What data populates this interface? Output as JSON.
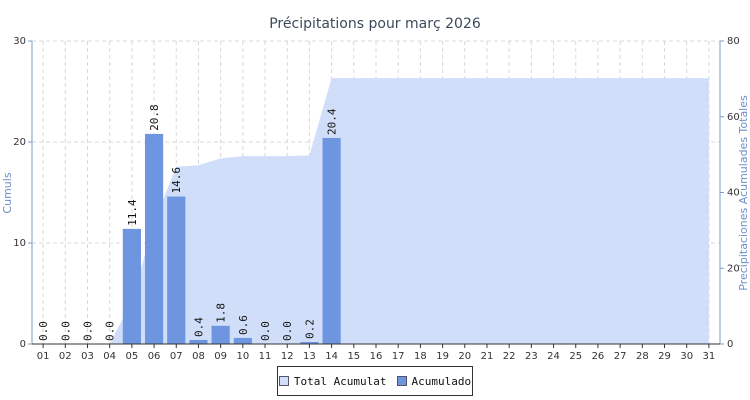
{
  "chart_data": {
    "type": "bar",
    "title": "Précipitations pour marҫ 2026",
    "ylabel": "Cumuls",
    "y2label": "Precipitaciones Acumulades Totales",
    "ylim": [
      0,
      30
    ],
    "y2lim": [
      0,
      80
    ],
    "yticks": [
      "0",
      "10",
      "20",
      "30"
    ],
    "y2ticks": [
      "0",
      "20",
      "40",
      "60",
      "80"
    ],
    "categories": [
      "01",
      "02",
      "03",
      "04",
      "05",
      "06",
      "07",
      "08",
      "09",
      "10",
      "11",
      "12",
      "13",
      "14",
      "15",
      "16",
      "17",
      "18",
      "19",
      "20",
      "21",
      "22",
      "23",
      "24",
      "25",
      "26",
      "27",
      "28",
      "29",
      "30",
      "31"
    ],
    "grid": true,
    "legend_position": "bottom-center",
    "series": [
      {
        "name": "Total Acumulat",
        "type": "area",
        "axis": "right",
        "color": "#d0defa",
        "values": [
          0,
          0,
          0,
          0,
          11.4,
          32.2,
          46.8,
          47.2,
          49.0,
          49.6,
          49.6,
          49.6,
          49.8,
          70.2,
          70.2,
          70.2,
          70.2,
          70.2,
          70.2,
          70.2,
          70.2,
          70.2,
          70.2,
          70.2,
          70.2,
          70.2,
          70.2,
          70.2,
          70.2,
          70.2,
          70.2
        ]
      },
      {
        "name": "Acumulado",
        "type": "bar",
        "axis": "left",
        "color": "#6e96e0",
        "values": [
          0.0,
          0.0,
          0.0,
          0.0,
          11.4,
          20.8,
          14.6,
          0.4,
          1.8,
          0.6,
          0.0,
          0.0,
          0.2,
          20.4,
          null,
          null,
          null,
          null,
          null,
          null,
          null,
          null,
          null,
          null,
          null,
          null,
          null,
          null,
          null,
          null,
          null
        ],
        "labels": [
          "0.0",
          "0.0",
          "0.0",
          "0.0",
          "11.4",
          "20.8",
          "14.6",
          "0.4",
          "1.8",
          "0.6",
          "0.0",
          "0.0",
          "0.2",
          "20.4"
        ]
      }
    ]
  }
}
